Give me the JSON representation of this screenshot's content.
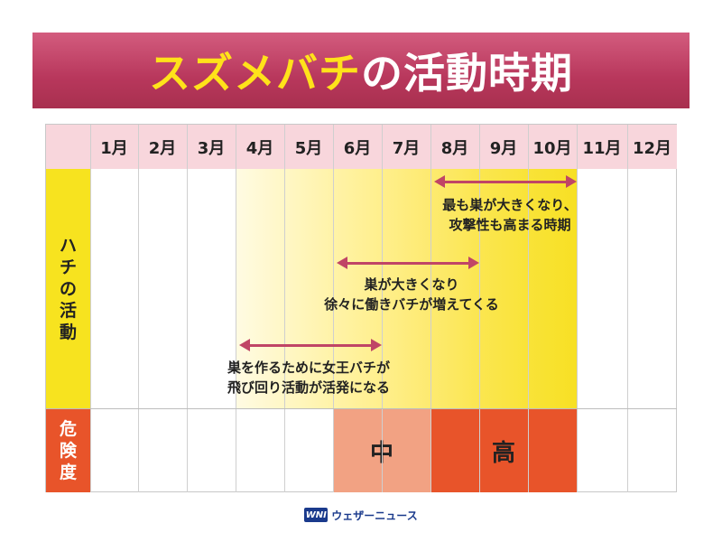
{
  "title": {
    "accent": "スズメバチ",
    "rest": "の活動時期"
  },
  "months": [
    "1月",
    "2月",
    "3月",
    "4月",
    "5月",
    "6月",
    "7月",
    "8月",
    "9月",
    "10月",
    "11月",
    "12月"
  ],
  "rows": {
    "activity_label": [
      "ハ",
      "チ",
      "の",
      "活",
      "動"
    ],
    "danger_label": [
      "危",
      "険",
      "度"
    ]
  },
  "danger_levels": {
    "medium": "中",
    "high": "高"
  },
  "annotations": {
    "period1_line1": "巣を作るために女王バチが",
    "period1_line2": "飛び回り活動が活発になる",
    "period2_line1": "巣が大きくなり",
    "period2_line2": "徐々に働きバチが増えてくる",
    "period3_line1": "最も巣が大きくなり、",
    "period3_line2": "攻撃性も高まる時期"
  },
  "colors": {
    "banner": "#b8375c",
    "title_accent": "#ffe21a",
    "header_bg": "#f8d6dc",
    "activity_yellow": "#f7e31f",
    "danger_high": "#e8542a",
    "danger_medium": "#f2a283",
    "arrow": "#c04566"
  },
  "footer": {
    "logo_mark": "WNI",
    "brand": "ウェザーニュース"
  }
}
